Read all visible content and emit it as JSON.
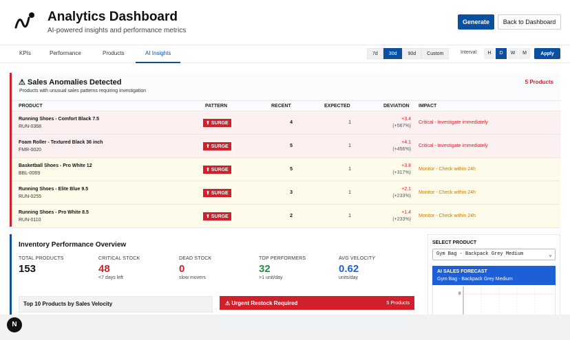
{
  "header": {
    "title": "Analytics Dashboard",
    "subtitle": "AI-powered insights and performance metrics",
    "generate_label": "Generate",
    "back_label": "Back to Dashboard"
  },
  "tabs": [
    {
      "label": "KPIs"
    },
    {
      "label": "Performance"
    },
    {
      "label": "Products"
    },
    {
      "label": "AI Insights",
      "active": true
    }
  ],
  "range": [
    {
      "label": "7d"
    },
    {
      "label": "30d",
      "active": true
    },
    {
      "label": "90d"
    },
    {
      "label": "Custom"
    }
  ],
  "interval": {
    "label": "Interval:",
    "options": [
      {
        "label": "H"
      },
      {
        "label": "D",
        "active": true
      },
      {
        "label": "W"
      },
      {
        "label": "M"
      }
    ],
    "apply_label": "Apply"
  },
  "anomalies": {
    "title": "⚠ Sales Anomalies Detected",
    "subtitle": "Products with unusual sales patterns requiring investigation",
    "count_label": "5 Products",
    "columns": [
      "PRODUCT",
      "PATTERN",
      "RECENT",
      "EXPECTED",
      "DEVIATION",
      "IMPACT"
    ],
    "rows": [
      {
        "name": "Running Shoes - Comfort Black 7.5",
        "sku": "RUN-0368",
        "pattern": "⬆ SURGE",
        "recent": "4",
        "expected": "1",
        "dev_abs": "+3.4",
        "dev_pct": "(+567%)",
        "impact": "Critical - Investigate immediately",
        "level": "critical"
      },
      {
        "name": "Foam Roller - Textured Black 36 inch",
        "sku": "FMR-0020",
        "pattern": "⬆ SURGE",
        "recent": "5",
        "expected": "1",
        "dev_abs": "+4.1",
        "dev_pct": "(+456%)",
        "impact": "Critical - Investigate immediately",
        "level": "critical"
      },
      {
        "name": "Basketball Shoes - Pro White 12",
        "sku": "BBL-0069",
        "pattern": "⬆ SURGE",
        "recent": "5",
        "expected": "1",
        "dev_abs": "+3.8",
        "dev_pct": "(+317%)",
        "impact": "Monitor - Check within 24h",
        "level": "monitor"
      },
      {
        "name": "Running Shoes - Elite Blue 9.5",
        "sku": "RUN-0255",
        "pattern": "⬆ SURGE",
        "recent": "3",
        "expected": "1",
        "dev_abs": "+2.1",
        "dev_pct": "(+233%)",
        "impact": "Monitor - Check within 24h",
        "level": "monitor"
      },
      {
        "name": "Running Shoes - Pro White 8.5",
        "sku": "RUN-0110",
        "pattern": "⬆ SURGE",
        "recent": "2",
        "expected": "1",
        "dev_abs": "+1.4",
        "dev_pct": "(+233%)",
        "impact": "Monitor - Check within 24h",
        "level": "monitor"
      }
    ]
  },
  "inventory": {
    "title": "Inventory Performance Overview",
    "stats": [
      {
        "label": "TOTAL PRODUCTS",
        "value": "153",
        "sub": "",
        "color": "#111111"
      },
      {
        "label": "CRITICAL STOCK",
        "value": "48",
        "sub": "<7 days left",
        "color": "#d0202b"
      },
      {
        "label": "DEAD STOCK",
        "value": "0",
        "sub": "slow movers",
        "color": "#d0202b"
      },
      {
        "label": "TOP PERFORMERS",
        "value": "32",
        "sub": ">1 unit/day",
        "color": "#1e8f3c"
      },
      {
        "label": "AVG VELOCITY",
        "value": "0.62",
        "sub": "units/day",
        "color": "#1d5fd6"
      }
    ]
  },
  "top_products": {
    "title": "Top 10 Products by Sales Velocity"
  },
  "restock": {
    "title": "⚠ Urgent Restock Required",
    "count": "5 Products"
  },
  "select_product": {
    "label": "SELECT PRODUCT",
    "value": "Gym Bag - Backpack Grey Medium",
    "forecast_title": "AI SALES FORECAST",
    "forecast_product": "Gym Bag - Backpack Grey Medium",
    "y_tick": "8"
  },
  "footer": {
    "badge": "N"
  }
}
